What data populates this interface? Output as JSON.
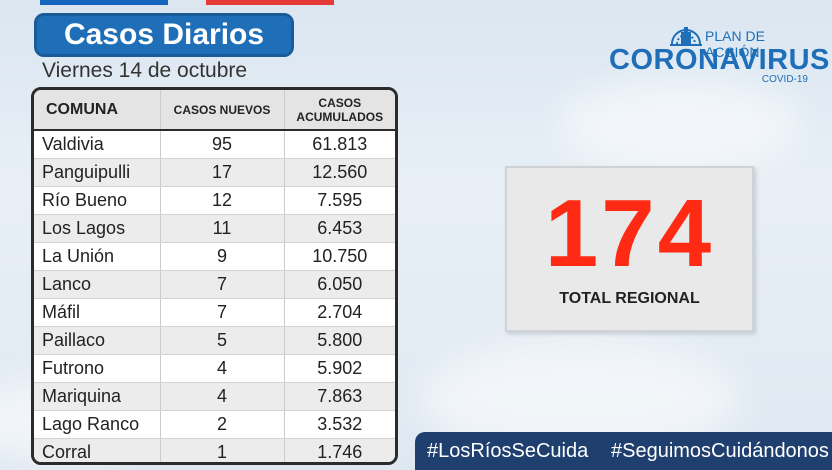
{
  "header": {
    "title": "Casos Diarios",
    "date": "Viernes 14 de octubre"
  },
  "table": {
    "columns": [
      "COMUNA",
      "CASOS NUEVOS",
      "CASOS\nACUMULADOS"
    ],
    "rows": [
      {
        "comuna": "Valdivia",
        "nuevos": "95",
        "acumulados": "61.813"
      },
      {
        "comuna": "Panguipulli",
        "nuevos": "17",
        "acumulados": "12.560"
      },
      {
        "comuna": "Río Bueno",
        "nuevos": "12",
        "acumulados": "7.595"
      },
      {
        "comuna": "Los Lagos",
        "nuevos": "11",
        "acumulados": "6.453"
      },
      {
        "comuna": "La Unión",
        "nuevos": "9",
        "acumulados": "10.750"
      },
      {
        "comuna": "Lanco",
        "nuevos": "7",
        "acumulados": "6.050"
      },
      {
        "comuna": "Máfil",
        "nuevos": "7",
        "acumulados": "2.704"
      },
      {
        "comuna": "Paillaco",
        "nuevos": "5",
        "acumulados": "5.800"
      },
      {
        "comuna": "Futrono",
        "nuevos": "4",
        "acumulados": "5.902"
      },
      {
        "comuna": "Mariquina",
        "nuevos": "4",
        "acumulados": "7.863"
      },
      {
        "comuna": "Lago Ranco",
        "nuevos": "2",
        "acumulados": "3.532"
      },
      {
        "comuna": "Corral",
        "nuevos": "1",
        "acumulados": "1.746"
      }
    ]
  },
  "logo": {
    "plan": "PLAN DE ACCIÓN",
    "name": "CORONAVIRUS",
    "sub": "COVID-19",
    "icon": "chilean-government-emblem"
  },
  "total": {
    "value": "174",
    "label": "TOTAL REGIONAL"
  },
  "hashtags": [
    "#LosRíosSeCuida",
    "#SeguimosCuidándonos"
  ],
  "colors": {
    "primary_blue": "#1e6fb8",
    "total_red": "#ff2a14",
    "hashtag_bar": "#1f3f6e"
  }
}
